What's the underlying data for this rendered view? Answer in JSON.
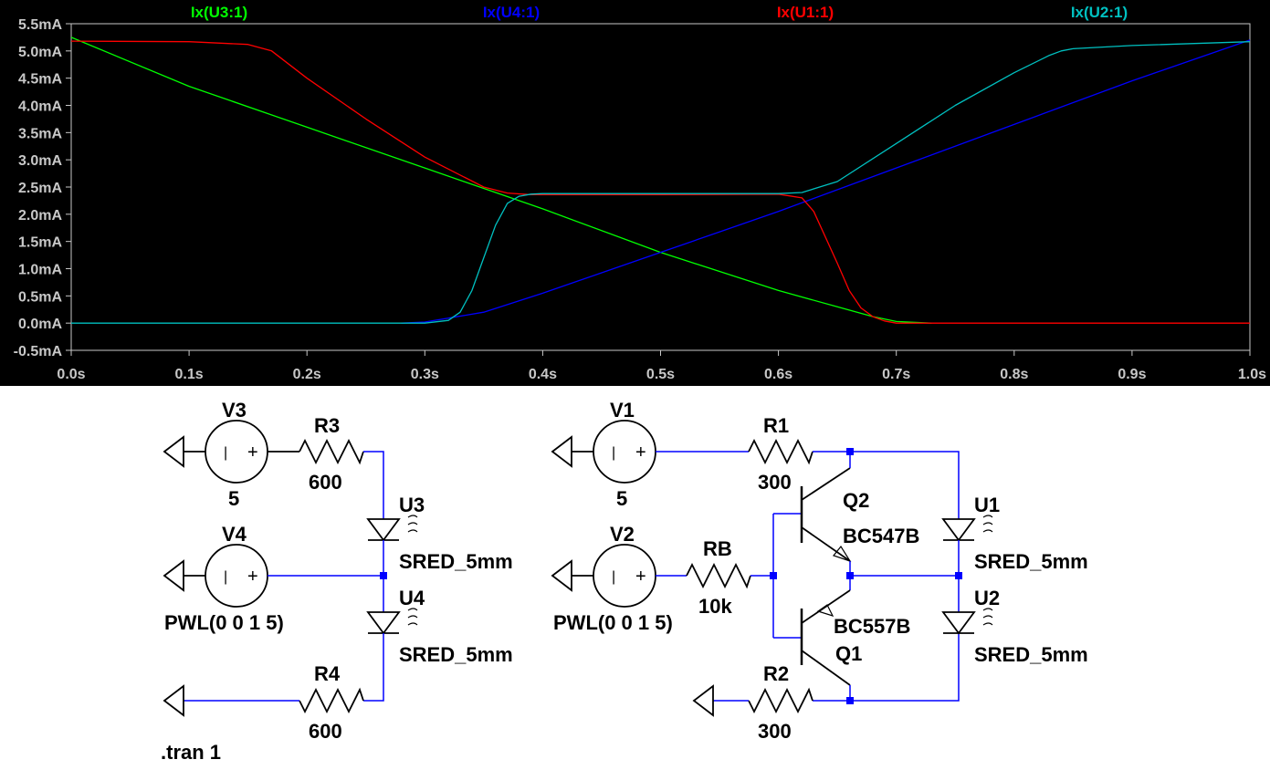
{
  "chart_data": {
    "type": "line",
    "xlabel": "",
    "ylabel": "",
    "xlim": [
      0.0,
      1.0
    ],
    "ylim": [
      -0.5,
      5.5
    ],
    "x_ticks": [
      "0.0s",
      "0.1s",
      "0.2s",
      "0.3s",
      "0.4s",
      "0.5s",
      "0.6s",
      "0.7s",
      "0.8s",
      "0.9s",
      "1.0s"
    ],
    "x_tick_values": [
      0.0,
      0.1,
      0.2,
      0.3,
      0.4,
      0.5,
      0.6,
      0.7,
      0.8,
      0.9,
      1.0
    ],
    "y_ticks": [
      "-0.5mA",
      "0.0mA",
      "0.5mA",
      "1.0mA",
      "1.5mA",
      "2.0mA",
      "2.5mA",
      "3.0mA",
      "3.5mA",
      "4.0mA",
      "4.5mA",
      "5.0mA",
      "5.5mA"
    ],
    "y_tick_values": [
      -0.5,
      0.0,
      0.5,
      1.0,
      1.5,
      2.0,
      2.5,
      3.0,
      3.5,
      4.0,
      4.5,
      5.0,
      5.5
    ],
    "series": [
      {
        "name": "Ix(U3:1)",
        "color": "#00ff00",
        "x": [
          0.0,
          0.1,
          0.2,
          0.3,
          0.4,
          0.5,
          0.6,
          0.65,
          0.68,
          0.7,
          0.73
        ],
        "y": [
          5.25,
          4.35,
          3.6,
          2.85,
          2.1,
          1.3,
          0.6,
          0.3,
          0.12,
          0.03,
          0.0
        ]
      },
      {
        "name": "Ix(U4:1)",
        "color": "#0000ff",
        "x": [
          0.28,
          0.3,
          0.35,
          0.4,
          0.5,
          0.6,
          0.7,
          0.8,
          0.9,
          1.0
        ],
        "y": [
          0.0,
          0.02,
          0.2,
          0.55,
          1.3,
          2.05,
          2.85,
          3.65,
          4.45,
          5.2
        ]
      },
      {
        "name": "Ix(U1:1)",
        "color": "#ff0000",
        "x": [
          0.0,
          0.1,
          0.15,
          0.17,
          0.2,
          0.25,
          0.3,
          0.35,
          0.37,
          0.39,
          0.4,
          0.5,
          0.6,
          0.62,
          0.63,
          0.65,
          0.66,
          0.67,
          0.68,
          0.69,
          0.7,
          1.0
        ],
        "y": [
          5.18,
          5.17,
          5.12,
          5.0,
          4.5,
          3.75,
          3.05,
          2.5,
          2.39,
          2.36,
          2.36,
          2.36,
          2.37,
          2.3,
          2.05,
          1.1,
          0.6,
          0.28,
          0.12,
          0.04,
          0.0,
          0.0
        ]
      },
      {
        "name": "Ix(U2:1)",
        "color": "#00c0c0",
        "x": [
          0.0,
          0.3,
          0.32,
          0.33,
          0.34,
          0.35,
          0.36,
          0.37,
          0.38,
          0.39,
          0.4,
          0.5,
          0.6,
          0.62,
          0.65,
          0.7,
          0.75,
          0.8,
          0.83,
          0.84,
          0.85,
          0.9,
          1.0
        ],
        "y": [
          0.0,
          0.0,
          0.05,
          0.2,
          0.6,
          1.2,
          1.8,
          2.2,
          2.33,
          2.37,
          2.38,
          2.38,
          2.38,
          2.4,
          2.6,
          3.3,
          4.0,
          4.6,
          4.92,
          5.0,
          5.04,
          5.1,
          5.17
        ]
      }
    ]
  },
  "schematic": {
    "labels": {
      "v3": "V3",
      "v3_val": "5",
      "v4": "V4",
      "v4_val": "PWL(0 0 1 5)",
      "r3": "R3",
      "r3_val": "600",
      "r4": "R4",
      "r4_val": "600",
      "u3": "U3",
      "u3_model": "SRED_5mm",
      "u4": "U4",
      "u4_model": "SRED_5mm",
      "v1": "V1",
      "v1_val": "5",
      "v2": "V2",
      "v2_val": "PWL(0 0 1 5)",
      "r1": "R1",
      "r1_val": "300",
      "rb": "RB",
      "rb_val": "10k",
      "r2": "R2",
      "r2_val": "300",
      "q2": "Q2",
      "q2_model": "BC547B",
      "q1": "Q1",
      "q1_model": "BC557B",
      "u1": "U1",
      "u1_model": "SRED_5mm",
      "u2": "U2",
      "u2_model": "SRED_5mm",
      "directive": ".tran 1"
    },
    "source_glyph_minus": "|",
    "source_glyph_plus": "+"
  }
}
